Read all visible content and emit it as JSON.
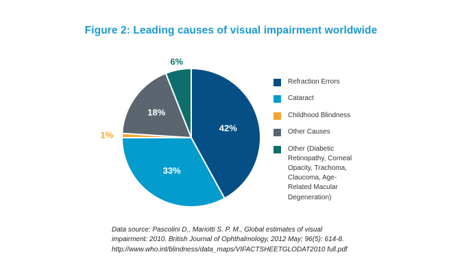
{
  "chart_data": {
    "type": "pie",
    "title": "Figure 2: Leading causes of visual impairment worldwide",
    "slices": [
      {
        "label": "Refraction Errors",
        "value": 42,
        "display": "42%",
        "color": "#034f86",
        "label_color": "#ffffff"
      },
      {
        "label": "Cataract",
        "value": 33,
        "display": "33%",
        "color": "#049bcd",
        "label_color": "#ffffff"
      },
      {
        "label": "Childhood Blindness",
        "value": 1,
        "display": "1%",
        "color": "#f2a531",
        "label_color": "#f2a531"
      },
      {
        "label": "Other Causes",
        "value": 18,
        "display": "18%",
        "color": "#5a6570",
        "label_color": "#ffffff"
      },
      {
        "label": "Other (Diabetic Retinopathy, Corneal Opacity, Trachoma, Claucoma, Age-Related Macular Degeneration)",
        "value": 6,
        "display": "6%",
        "color": "#0e6e6c",
        "label_color": "#0e6e6c"
      }
    ],
    "legend": {
      "position": "right",
      "entries": [
        [
          "Refraction Errors"
        ],
        [
          "Cataract"
        ],
        [
          "Childhood Blindness"
        ],
        [
          "Other Causes"
        ],
        [
          "Other (Diabetic",
          "Retinopathy, Corneal",
          "Opacity, Trachoma,",
          "Claucoma, Age-",
          "Related Macular",
          "Degeneration)"
        ]
      ]
    }
  },
  "source": {
    "lines": [
      "Data source: Pascolini D., Mariotti S. P. M., Global estimates of visual",
      "impairment: 2010. British Journal of Ophthalmology, 2012 May; 96(5): 614-8.",
      "http://www.who.int/blindness/data_maps/VIFACTSHEETGLODAT2010 full.pdf"
    ]
  }
}
